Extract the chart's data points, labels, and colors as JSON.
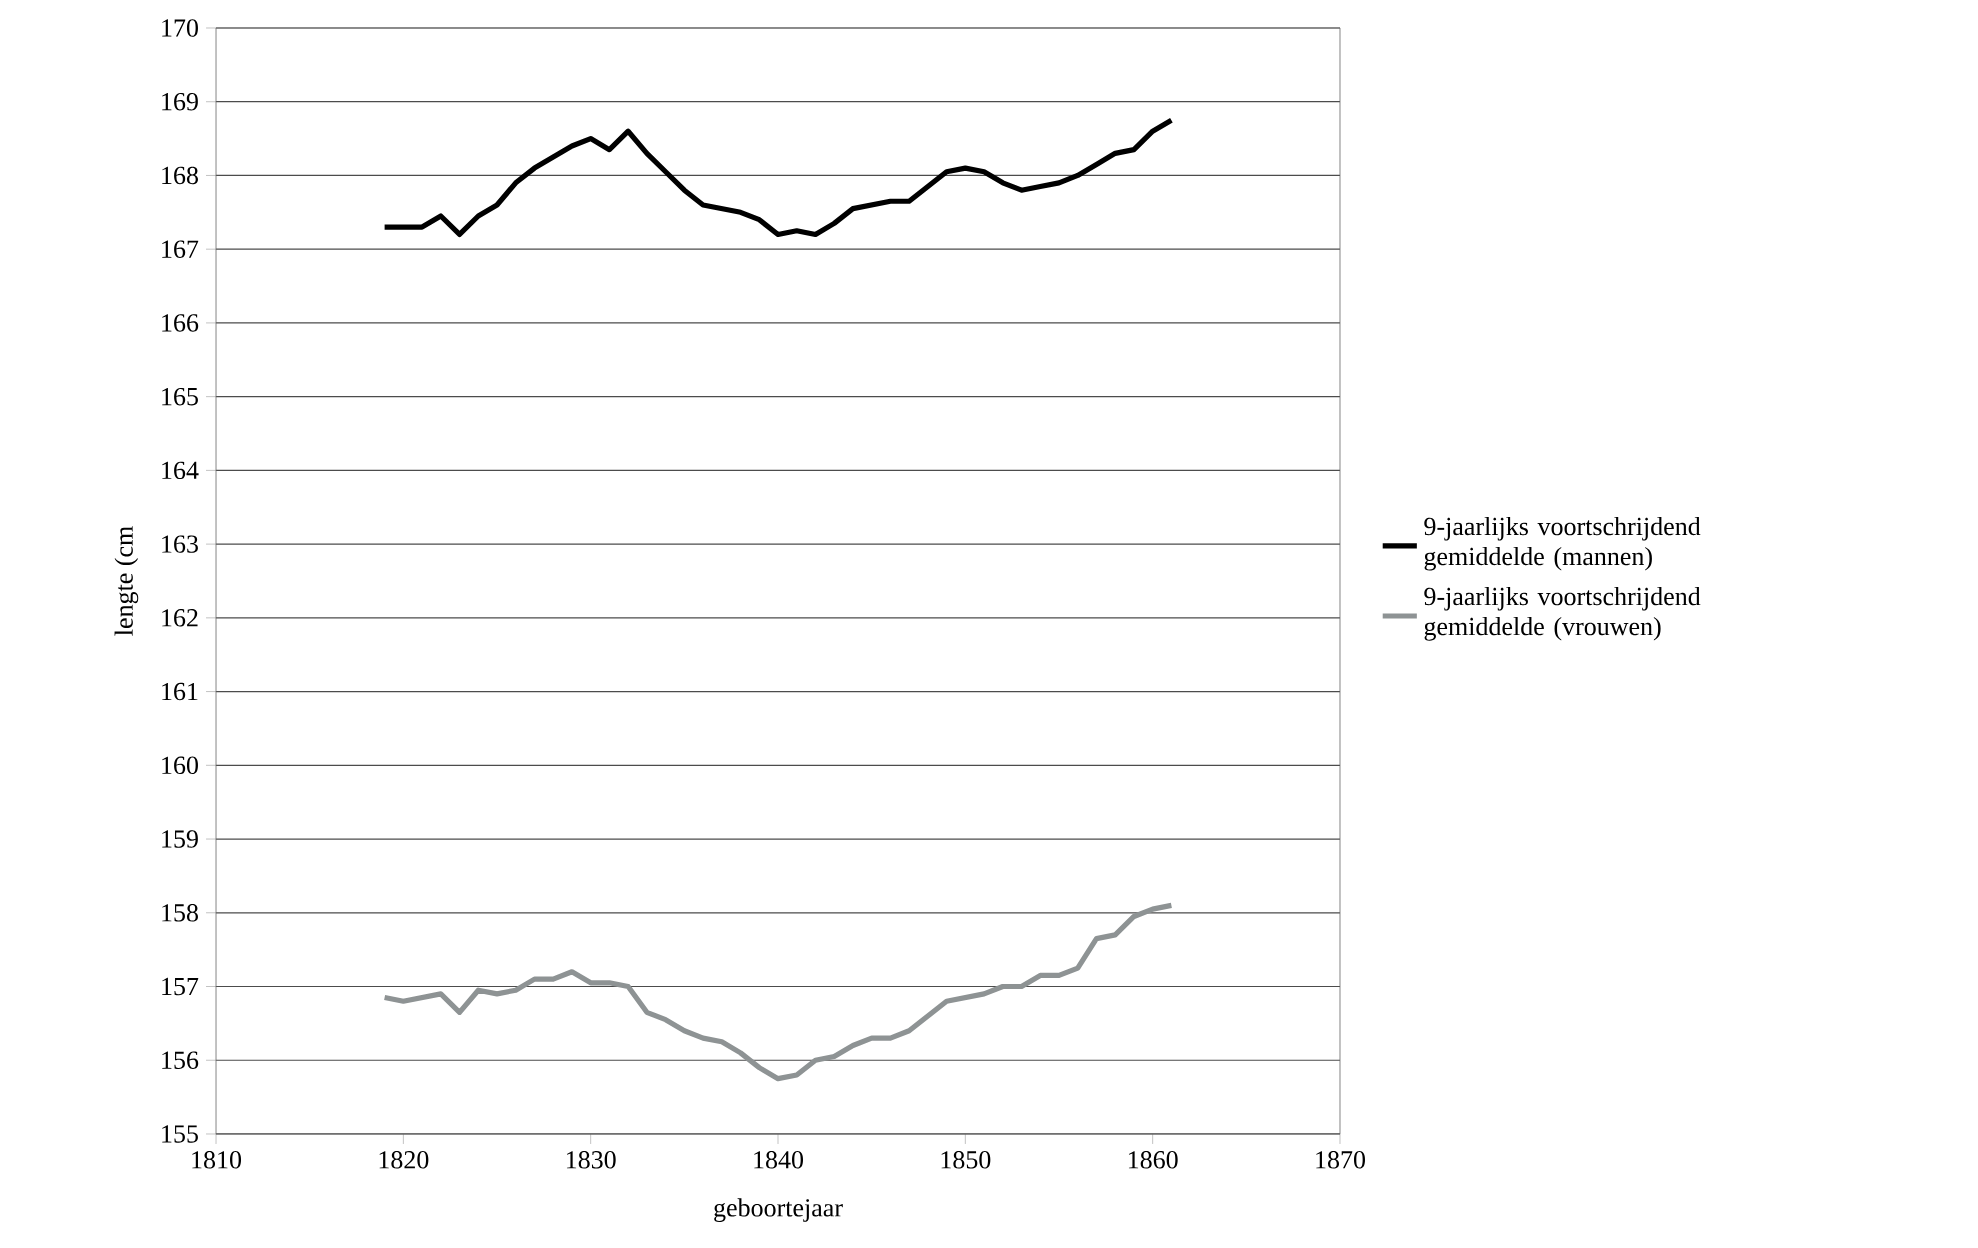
{
  "chart_data": {
    "type": "line",
    "xlabel": "geboortejaar",
    "ylabel": "lengte (cm",
    "x": [
      1819,
      1820,
      1821,
      1822,
      1823,
      1824,
      1825,
      1826,
      1827,
      1828,
      1829,
      1830,
      1831,
      1832,
      1833,
      1834,
      1835,
      1836,
      1837,
      1838,
      1839,
      1840,
      1841,
      1842,
      1843,
      1844,
      1845,
      1846,
      1847,
      1848,
      1849,
      1850,
      1851,
      1852,
      1853,
      1854,
      1855,
      1856,
      1857,
      1858,
      1859,
      1860,
      1861
    ],
    "series": [
      {
        "name": "9-jaarlijks voortschrijdend gemiddelde (mannen)",
        "color": "#000000",
        "values": [
          167.3,
          167.3,
          167.3,
          167.45,
          167.2,
          167.45,
          167.6,
          167.9,
          168.1,
          168.25,
          168.4,
          168.5,
          168.35,
          168.6,
          168.3,
          168.05,
          167.8,
          167.6,
          167.55,
          167.5,
          167.4,
          167.2,
          167.25,
          167.2,
          167.35,
          167.55,
          167.6,
          167.65,
          167.65,
          167.85,
          168.05,
          168.1,
          168.05,
          167.9,
          167.8,
          167.85,
          167.9,
          168.0,
          168.15,
          168.3,
          168.35,
          168.6,
          168.75
        ]
      },
      {
        "name": "9-jaarlijks voortschrijdend gemiddelde (vrouwen)",
        "color": "#8e9394",
        "values": [
          156.85,
          156.8,
          156.85,
          156.9,
          156.65,
          156.95,
          156.9,
          156.95,
          157.1,
          157.1,
          157.2,
          157.05,
          157.05,
          157.0,
          156.65,
          156.55,
          156.4,
          156.3,
          156.25,
          156.1,
          155.9,
          155.75,
          155.8,
          156.0,
          156.05,
          156.2,
          156.3,
          156.3,
          156.4,
          156.6,
          156.8,
          156.85,
          156.9,
          157.0,
          157.0,
          157.15,
          157.15,
          157.25,
          157.65,
          157.7,
          157.95,
          158.05,
          158.1
        ]
      }
    ],
    "xlim": [
      1810,
      1870
    ],
    "xticks": [
      1810,
      1820,
      1830,
      1840,
      1850,
      1860,
      1870
    ],
    "ylim": [
      155,
      170
    ],
    "yticks": [
      155,
      156,
      157,
      158,
      159,
      160,
      161,
      162,
      163,
      164,
      165,
      166,
      167,
      168,
      169,
      170
    ],
    "grid": "y",
    "legend": "right",
    "marker": "none",
    "line_style": "solid"
  }
}
